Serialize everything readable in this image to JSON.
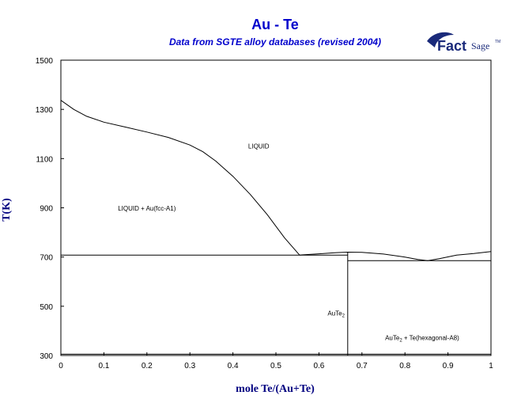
{
  "chart_data": {
    "type": "line",
    "title": "Au - Te",
    "subtitle": "Data from SGTE alloy databases (revised 2004)",
    "xlabel": "mole Te/(Au+Te)",
    "ylabel": "T(K)",
    "xlim": [
      0,
      1
    ],
    "ylim": [
      300,
      1500
    ],
    "xticks": [
      0,
      0.1,
      0.2,
      0.3,
      0.4,
      0.5,
      0.6,
      0.7,
      0.8,
      0.9,
      1
    ],
    "xtick_labels": [
      "0",
      "0.1",
      "0.2",
      "0.3",
      "0.4",
      "0.5",
      "0.6",
      "0.7",
      "0.8",
      "0.9",
      "1"
    ],
    "yticks": [
      300,
      500,
      700,
      900,
      1100,
      1300,
      1500
    ],
    "ytick_labels": [
      "300",
      "500",
      "700",
      "900",
      "1100",
      "1300",
      "1500"
    ],
    "grid": false,
    "series": [
      {
        "role": "liquidus-au-side",
        "points": [
          [
            0,
            1337
          ],
          [
            0.03,
            1300
          ],
          [
            0.06,
            1272
          ],
          [
            0.1,
            1248
          ],
          [
            0.15,
            1228
          ],
          [
            0.2,
            1208
          ],
          [
            0.25,
            1186
          ],
          [
            0.3,
            1155
          ],
          [
            0.33,
            1128
          ],
          [
            0.36,
            1090
          ],
          [
            0.4,
            1028
          ],
          [
            0.44,
            955
          ],
          [
            0.48,
            872
          ],
          [
            0.52,
            778
          ],
          [
            0.555,
            708
          ]
        ]
      },
      {
        "role": "liquidus-te-side",
        "points": [
          [
            0.555,
            708
          ],
          [
            0.6,
            713
          ],
          [
            0.64,
            718
          ],
          [
            0.667,
            720
          ],
          [
            0.7,
            719
          ],
          [
            0.75,
            712
          ],
          [
            0.8,
            700
          ],
          [
            0.83,
            690
          ],
          [
            0.853,
            685
          ],
          [
            0.88,
            693
          ],
          [
            0.92,
            708
          ],
          [
            0.96,
            714
          ],
          [
            1.0,
            722
          ]
        ]
      },
      {
        "role": "eutectic-line-au-side",
        "points": [
          [
            0,
            708
          ],
          [
            0.667,
            708
          ]
        ]
      },
      {
        "role": "eutectic-line-te-side",
        "points": [
          [
            0.667,
            685
          ],
          [
            1.0,
            685
          ]
        ]
      },
      {
        "role": "aute2-compound-line",
        "points": [
          [
            0.667,
            300
          ],
          [
            0.667,
            720
          ]
        ]
      },
      {
        "role": "bottom-boundary",
        "points": [
          [
            0,
            305
          ],
          [
            1.0,
            305
          ]
        ]
      }
    ],
    "annotations": [
      {
        "label": "LIQUID",
        "x": 0.46,
        "y": 1142
      },
      {
        "label": "LIQUID + Au(fcc-A1)",
        "x": 0.2,
        "y": 888
      },
      {
        "label": "AuTe",
        "sub": "2",
        "x": 0.64,
        "y": 462
      },
      {
        "label": "AuTe",
        "sub": "2",
        "rest": " + Te(hexagonal-A8)",
        "x": 0.84,
        "y": 362
      }
    ],
    "colors": {
      "title": "#0000cc",
      "axis_title": "#000080",
      "line": "#000000"
    }
  },
  "logo": {
    "word1": "Fact",
    "word2": "Sage",
    "mark": "TM",
    "color": "#1a2a7a"
  }
}
